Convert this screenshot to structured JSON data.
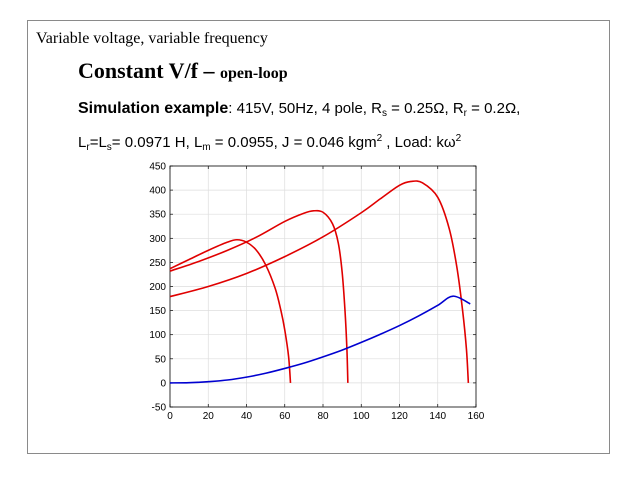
{
  "heading": "Variable voltage, variable frequency",
  "title": {
    "main": "Constant V/f – ",
    "sub": "open-loop"
  },
  "params": {
    "label": "Simulation example",
    "text1": ": 415V, 50Hz, 4 pole, R",
    "rs_sub": "s",
    "text2": " = 0.25Ω, R",
    "rr_sub": "r",
    "text3": " = 0.2Ω,",
    "l1": "L",
    "lr_sub": "r",
    "l2": "=L",
    "ls_sub": "s",
    "l3": "= 0.0971 H, L",
    "lm_sub": "m",
    "l4": " = 0.0955, J = 0.046 kgm",
    "j_sup": "2",
    "l5": " , Load: kω",
    "load_sup": "2"
  },
  "chart_data": {
    "type": "line",
    "xlim": [
      0,
      160
    ],
    "ylim": [
      -50,
      450
    ],
    "xticks": [
      0,
      20,
      40,
      60,
      80,
      100,
      120,
      140,
      160
    ],
    "yticks": [
      -50,
      0,
      50,
      100,
      150,
      200,
      250,
      300,
      350,
      400,
      450
    ],
    "grid": true,
    "series": [
      {
        "color": "#e00000",
        "points": [
          [
            0,
            237
          ],
          [
            10,
            256
          ],
          [
            20,
            275
          ],
          [
            30,
            292
          ],
          [
            35,
            297
          ],
          [
            40,
            292
          ],
          [
            45,
            276
          ],
          [
            50,
            245
          ],
          [
            55,
            196
          ],
          [
            58,
            150
          ],
          [
            60,
            110
          ],
          [
            62,
            55
          ],
          [
            63,
            0
          ]
        ]
      },
      {
        "color": "#e00000",
        "points": [
          [
            0,
            232
          ],
          [
            15,
            252
          ],
          [
            30,
            275
          ],
          [
            45,
            302
          ],
          [
            60,
            335
          ],
          [
            70,
            352
          ],
          [
            75,
            357
          ],
          [
            80,
            354
          ],
          [
            85,
            330
          ],
          [
            88,
            290
          ],
          [
            90,
            230
          ],
          [
            91.5,
            150
          ],
          [
            92.5,
            70
          ],
          [
            93,
            0
          ]
        ]
      },
      {
        "color": "#e00000",
        "points": [
          [
            0,
            179
          ],
          [
            20,
            200
          ],
          [
            40,
            227
          ],
          [
            60,
            262
          ],
          [
            80,
            303
          ],
          [
            100,
            353
          ],
          [
            110,
            382
          ],
          [
            120,
            410
          ],
          [
            126,
            418
          ],
          [
            132,
            415
          ],
          [
            140,
            385
          ],
          [
            146,
            320
          ],
          [
            150,
            240
          ],
          [
            153,
            150
          ],
          [
            155,
            70
          ],
          [
            156,
            0
          ]
        ]
      },
      {
        "color": "#0000d0",
        "points": [
          [
            0,
            0
          ],
          [
            10,
            0.5
          ],
          [
            20,
            2.5
          ],
          [
            30,
            6
          ],
          [
            40,
            12
          ],
          [
            50,
            20
          ],
          [
            60,
            30
          ],
          [
            70,
            41
          ],
          [
            80,
            54
          ],
          [
            90,
            68
          ],
          [
            100,
            84
          ],
          [
            110,
            101
          ],
          [
            120,
            119
          ],
          [
            130,
            139
          ],
          [
            140,
            161
          ],
          [
            148,
            180
          ],
          [
            157,
            164
          ]
        ]
      }
    ]
  }
}
